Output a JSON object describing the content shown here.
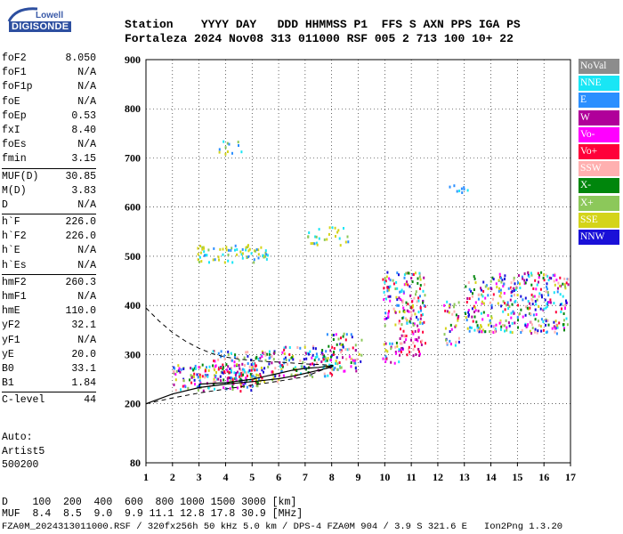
{
  "logo": {
    "line1": "Lowell",
    "line2": "DIGISONDE"
  },
  "header": {
    "line1": "Station    YYYY DAY   DDD HHMMSS P1  FFS S AXN PPS IGA PS",
    "line2": "Fortaleza 2024 Nov08 313 011000 RSF 005 2 713 100 10+ 22"
  },
  "params": [
    {
      "name": "foF2",
      "value": "8.050"
    },
    {
      "name": "foF1",
      "value": "N/A"
    },
    {
      "name": "foF1p",
      "value": "N/A"
    },
    {
      "name": "foE",
      "value": "N/A"
    },
    {
      "name": "foEp",
      "value": "0.53"
    },
    {
      "name": "fxI",
      "value": "8.40"
    },
    {
      "name": "foEs",
      "value": "N/A"
    },
    {
      "name": "fmin",
      "value": "3.15"
    },
    {
      "sep": true
    },
    {
      "name": "MUF(D)",
      "value": "30.85"
    },
    {
      "name": "M(D)",
      "value": "3.83"
    },
    {
      "name": "D",
      "value": "N/A"
    },
    {
      "sep": true
    },
    {
      "name": "h`F",
      "value": "226.0"
    },
    {
      "name": "h`F2",
      "value": "226.0"
    },
    {
      "name": "h`E",
      "value": "N/A"
    },
    {
      "name": "h`Es",
      "value": "N/A"
    },
    {
      "sep": true
    },
    {
      "name": "hmF2",
      "value": "260.3"
    },
    {
      "name": "hmF1",
      "value": "N/A"
    },
    {
      "name": "hmE",
      "value": "110.0"
    },
    {
      "name": "yF2",
      "value": "32.1"
    },
    {
      "name": "yF1",
      "value": "N/A"
    },
    {
      "name": "yE",
      "value": "20.0"
    },
    {
      "name": "B0",
      "value": "33.1"
    },
    {
      "name": "B1",
      "value": "1.84"
    },
    {
      "sep": true
    },
    {
      "name": "C-level",
      "value": "44"
    }
  ],
  "auto": {
    "line1": "Auto:",
    "line2": "Artist5",
    "line3": "500200"
  },
  "legend": [
    {
      "label": "NoVal",
      "color": "#8c8c8c"
    },
    {
      "label": "NNE",
      "color": "#19e6f5"
    },
    {
      "label": "E",
      "color": "#2b8fff"
    },
    {
      "label": "W",
      "color": "#b0009a"
    },
    {
      "label": "Vo-",
      "color": "#ff00ff"
    },
    {
      "label": "Vo+",
      "color": "#ff003a"
    },
    {
      "label": "SSW",
      "color": "#ffb0b0"
    },
    {
      "label": "X-",
      "color": "#00860c"
    },
    {
      "label": "X+",
      "color": "#8cc85a"
    },
    {
      "label": "SSE",
      "color": "#d4d41a"
    },
    {
      "label": "NNW",
      "color": "#1a10d8"
    }
  ],
  "chart_data": {
    "type": "scatter",
    "title": "",
    "xlabel": "",
    "ylabel": "",
    "xlim": [
      1,
      17
    ],
    "ylim": [
      80,
      900
    ],
    "x_ticks": [
      "1",
      "2",
      "3",
      "4",
      "5",
      "6",
      "7",
      "8",
      "9",
      "10",
      "11",
      "12",
      "13",
      "14",
      "15",
      "16",
      "17"
    ],
    "y_ticks": [
      "80",
      "200",
      "300",
      "400",
      "500",
      "600",
      "700",
      "800",
      "900"
    ],
    "grid": true,
    "legend_position": "right",
    "clusters": [
      {
        "x": [
          2.0,
          5.2
        ],
        "y": [
          228,
          282
        ],
        "density": 0.55,
        "series": "mix"
      },
      {
        "x": [
          3.5,
          6.0
        ],
        "y": [
          245,
          310
        ],
        "density": 0.45,
        "series": "mix"
      },
      {
        "x": [
          6.0,
          8.1
        ],
        "y": [
          255,
          320
        ],
        "density": 0.45,
        "series": "mix"
      },
      {
        "x": [
          7.8,
          9.1
        ],
        "y": [
          268,
          345
        ],
        "density": 0.4,
        "series": "mix"
      },
      {
        "x": [
          9.9,
          10.7
        ],
        "y": [
          283,
          330
        ],
        "density": 0.4,
        "series": "mix"
      },
      {
        "x": [
          9.9,
          11.5
        ],
        "y": [
          360,
          470
        ],
        "density": 0.45,
        "series": "mix"
      },
      {
        "x": [
          10.5,
          11.5
        ],
        "y": [
          300,
          355
        ],
        "density": 0.45,
        "series": "vo"
      },
      {
        "x": [
          12.2,
          12.8
        ],
        "y": [
          320,
          410
        ],
        "density": 0.35,
        "series": "mix"
      },
      {
        "x": [
          13.0,
          16.9
        ],
        "y": [
          345,
          470
        ],
        "density": 0.4,
        "series": "mix"
      },
      {
        "x": [
          2.7,
          5.6
        ],
        "y": [
          490,
          525
        ],
        "density": 0.4,
        "series": "sse"
      },
      {
        "x": [
          7.0,
          8.6
        ],
        "y": [
          525,
          562
        ],
        "density": 0.25,
        "series": "sse"
      },
      {
        "x": [
          12.4,
          13.2
        ],
        "y": [
          630,
          650
        ],
        "density": 0.3,
        "series": "nne"
      },
      {
        "x": [
          3.5,
          4.6
        ],
        "y": [
          710,
          740
        ],
        "density": 0.2,
        "series": "sse"
      }
    ],
    "profile": {
      "x": [
        1.0,
        2.0,
        3.0,
        4.0,
        5.0,
        5.5,
        6.0,
        6.5,
        7.0,
        7.5,
        7.8,
        8.0,
        8.05
      ],
      "y": [
        200,
        220,
        233,
        240,
        245,
        248,
        251,
        256,
        262,
        268,
        272,
        275,
        278
      ]
    },
    "profile_top": {
      "x": [
        3.0,
        4.0,
        5.0,
        5.5,
        6.0,
        6.5,
        7.0,
        7.5,
        7.8,
        8.05
      ],
      "y": [
        240,
        243,
        250,
        256,
        262,
        268,
        272,
        274,
        276,
        278
      ]
    },
    "dashed_profile": {
      "x": [
        1.0,
        1.5,
        2.0,
        2.5,
        3.0,
        3.5,
        4.0,
        4.5,
        5.0,
        5.5,
        6.0,
        6.5,
        7.0,
        7.5,
        8.05
      ],
      "y": [
        395,
        368,
        345,
        327,
        313,
        302,
        295,
        291,
        288,
        286,
        285,
        283,
        281,
        280,
        278
      ]
    },
    "dashed_lower": {
      "x": [
        1.0,
        2.0,
        3.0,
        4.0,
        5.0,
        6.0,
        7.0,
        8.05
      ],
      "y": [
        200,
        212,
        222,
        230,
        238,
        246,
        255,
        278
      ]
    }
  },
  "bottom": {
    "d_label": "D",
    "d_values": "100  200  400  600  800 1000 1500 3000 [km]",
    "muf_label": "MUF",
    "muf_values": "8.4  8.5  9.0  9.9 11.1 12.8 17.8 30.9 [MHz]"
  },
  "footer": "FZA0M_2024313011000.RSF / 320fx256h 50 kHz 5.0 km / DPS-4 FZA0M 904 / 3.9 S 321.6 E   Ion2Png 1.3.20"
}
